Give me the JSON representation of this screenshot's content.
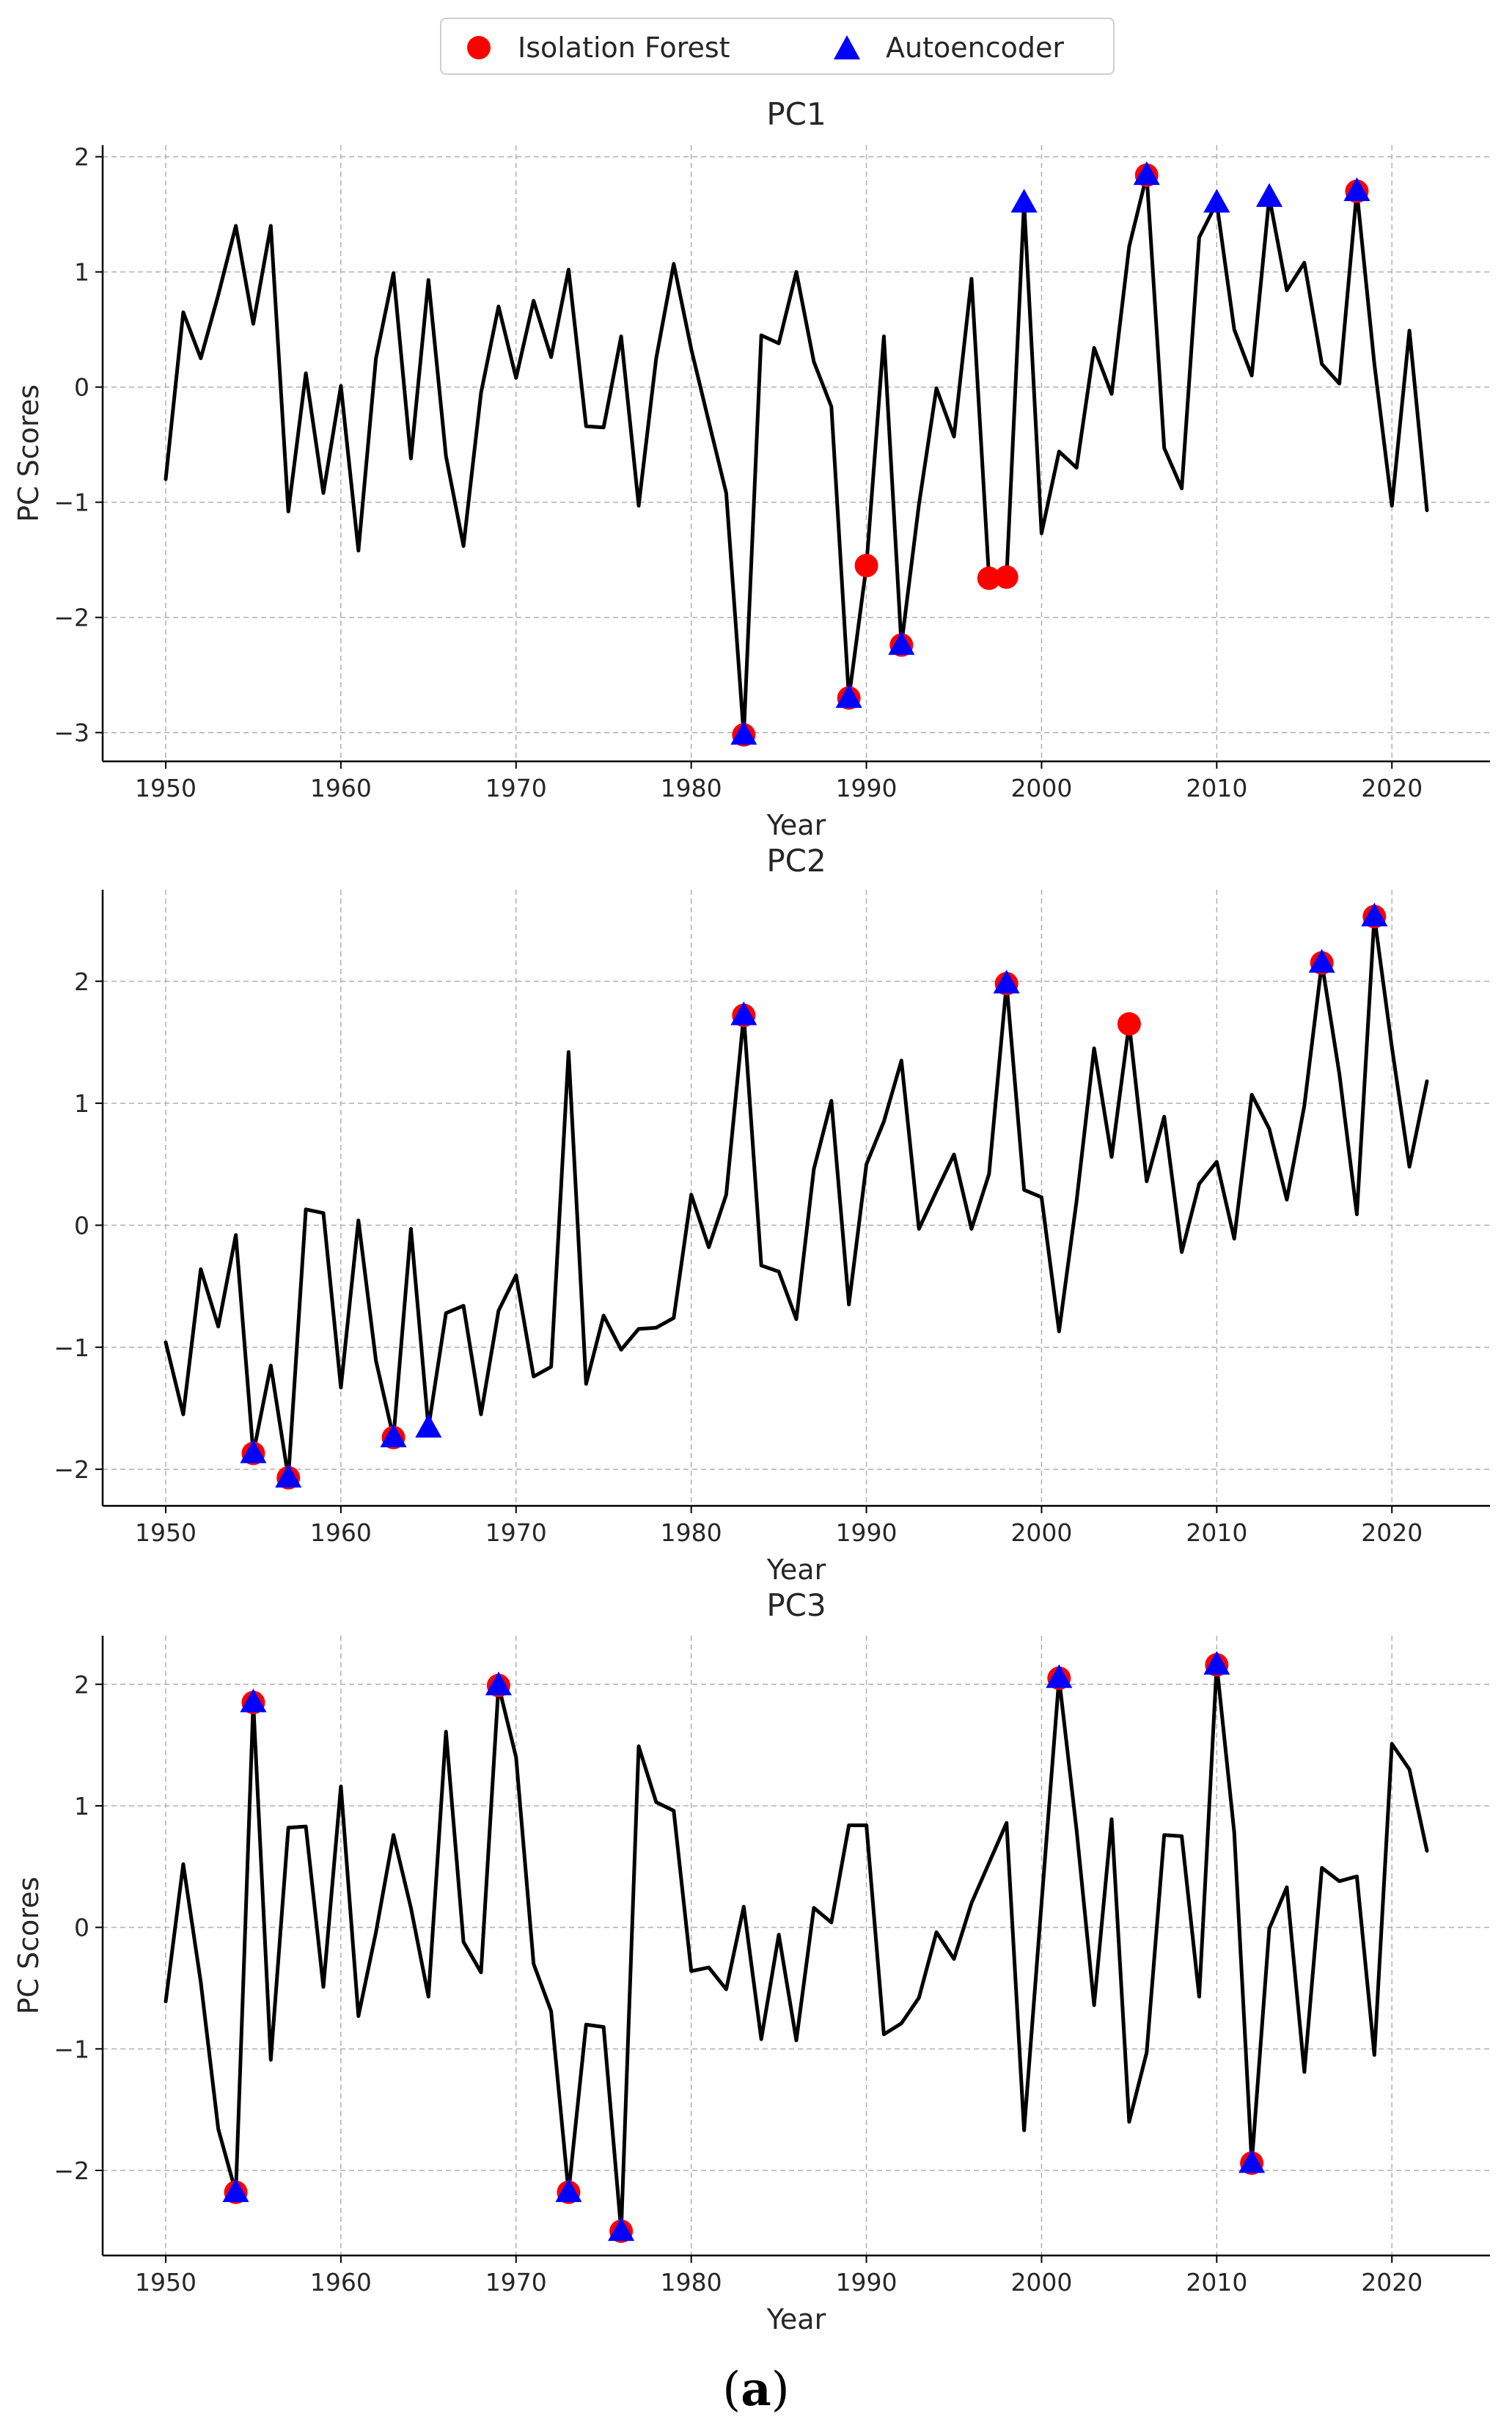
{
  "legend": {
    "items": [
      {
        "label": "Isolation Forest",
        "marker": "circle",
        "color": "#ff0000"
      },
      {
        "label": "Autoencoder",
        "marker": "triangle",
        "color": "#0000ff"
      }
    ]
  },
  "sublabel": {
    "open": "(",
    "letter": "a",
    "close": ")"
  },
  "colors": {
    "line": "#000000",
    "isolation_forest": "#ff0000",
    "autoencoder": "#0000ff",
    "grid": "#b0b0b0"
  },
  "chart_data": [
    {
      "type": "line",
      "title": "PC1",
      "xlabel": "Year",
      "ylabel": "PC Scores",
      "xlim": [
        1946.4,
        2025.6
      ],
      "ylim": [
        -3.25,
        2.1
      ],
      "xticks": [
        1950,
        1960,
        1970,
        1980,
        1990,
        2000,
        2010,
        2020
      ],
      "yticks": [
        -3,
        -2,
        -1,
        0,
        1,
        2
      ],
      "grid": true,
      "legend_position": "top-center",
      "x": [
        1950,
        1951,
        1952,
        1953,
        1954,
        1955,
        1956,
        1957,
        1958,
        1959,
        1960,
        1961,
        1962,
        1963,
        1964,
        1965,
        1966,
        1967,
        1968,
        1969,
        1970,
        1971,
        1972,
        1973,
        1974,
        1975,
        1976,
        1977,
        1978,
        1979,
        1980,
        1981,
        1982,
        1983,
        1984,
        1985,
        1986,
        1987,
        1988,
        1989,
        1990,
        1991,
        1992,
        1993,
        1994,
        1995,
        1996,
        1997,
        1998,
        1999,
        2000,
        2001,
        2002,
        2003,
        2004,
        2005,
        2006,
        2007,
        2008,
        2009,
        2010,
        2011,
        2012,
        2013,
        2014,
        2015,
        2016,
        2017,
        2018,
        2019,
        2020,
        2021,
        2022
      ],
      "y": [
        -0.8,
        0.65,
        0.25,
        0.8,
        1.4,
        0.55,
        1.4,
        -1.08,
        0.12,
        -0.92,
        0.01,
        -1.42,
        0.25,
        0.99,
        -0.62,
        0.93,
        -0.6,
        -1.38,
        -0.05,
        0.7,
        0.08,
        0.75,
        0.26,
        1.02,
        -0.34,
        -0.35,
        0.44,
        -1.03,
        0.25,
        1.07,
        0.33,
        -0.3,
        -0.92,
        -3.02,
        0.45,
        0.38,
        1.0,
        0.22,
        -0.17,
        -2.7,
        -1.55,
        0.44,
        -2.24,
        -1.02,
        -0.01,
        -0.43,
        0.94,
        -1.66,
        -1.65,
        1.6,
        -1.27,
        -0.56,
        -0.7,
        0.34,
        -0.06,
        1.22,
        1.84,
        -0.53,
        -0.88,
        1.3,
        1.6,
        0.5,
        0.1,
        1.65,
        0.84,
        1.08,
        0.2,
        0.03,
        1.7,
        0.2,
        -1.03,
        0.49,
        -1.07
      ],
      "series": [
        {
          "name": "Isolation Forest",
          "marker": "circle",
          "x": [
            1983,
            1989,
            1990,
            1992,
            1997,
            1998,
            2006,
            2018
          ],
          "y": [
            -3.02,
            -2.7,
            -1.55,
            -2.24,
            -1.66,
            -1.65,
            1.84,
            1.7
          ]
        },
        {
          "name": "Autoencoder",
          "marker": "triangle",
          "x": [
            1983,
            1989,
            1992,
            1999,
            2006,
            2010,
            2013,
            2018
          ],
          "y": [
            -3.02,
            -2.7,
            -2.24,
            1.6,
            1.84,
            1.6,
            1.65,
            1.7
          ]
        }
      ]
    },
    {
      "type": "line",
      "title": "PC2",
      "xlabel": "Year",
      "ylabel": "",
      "xlim": [
        1946.4,
        2025.6
      ],
      "ylim": [
        -2.3,
        2.75
      ],
      "xticks": [
        1950,
        1960,
        1970,
        1980,
        1990,
        2000,
        2010,
        2020
      ],
      "yticks": [
        -2,
        -1,
        0,
        1,
        2
      ],
      "grid": true,
      "x": [
        1950,
        1951,
        1952,
        1953,
        1954,
        1955,
        1956,
        1957,
        1958,
        1959,
        1960,
        1961,
        1962,
        1963,
        1964,
        1965,
        1966,
        1967,
        1968,
        1969,
        1970,
        1971,
        1972,
        1973,
        1974,
        1975,
        1976,
        1977,
        1978,
        1979,
        1980,
        1981,
        1982,
        1983,
        1984,
        1985,
        1986,
        1987,
        1988,
        1989,
        1990,
        1991,
        1992,
        1993,
        1994,
        1995,
        1996,
        1997,
        1998,
        1999,
        2000,
        2001,
        2002,
        2003,
        2004,
        2005,
        2006,
        2007,
        2008,
        2009,
        2010,
        2011,
        2012,
        2013,
        2014,
        2015,
        2016,
        2017,
        2018,
        2019,
        2020,
        2021,
        2022
      ],
      "y": [
        -0.96,
        -1.55,
        -0.36,
        -0.83,
        -0.08,
        -1.87,
        -1.15,
        -2.07,
        0.13,
        0.1,
        -1.33,
        0.04,
        -1.11,
        -1.74,
        -0.03,
        -1.66,
        -0.72,
        -0.66,
        -1.55,
        -0.7,
        -0.41,
        -1.24,
        -1.16,
        1.42,
        -1.3,
        -0.74,
        -1.02,
        -0.85,
        -0.84,
        -0.76,
        0.25,
        -0.18,
        0.25,
        1.72,
        -0.33,
        -0.38,
        -0.77,
        0.46,
        1.02,
        -0.65,
        0.5,
        0.85,
        1.35,
        -0.03,
        0.28,
        0.58,
        -0.03,
        0.42,
        1.98,
        0.29,
        0.23,
        -0.87,
        0.2,
        1.45,
        0.56,
        1.65,
        0.36,
        0.89,
        -0.22,
        0.34,
        0.52,
        -0.11,
        1.07,
        0.79,
        0.21,
        0.98,
        2.15,
        1.24,
        0.09,
        2.53,
        1.46,
        0.48,
        1.18
      ],
      "series": [
        {
          "name": "Isolation Forest",
          "marker": "circle",
          "x": [
            1955,
            1957,
            1963,
            1983,
            1998,
            2005,
            2016,
            2019
          ],
          "y": [
            -1.87,
            -2.07,
            -1.74,
            1.72,
            1.98,
            1.65,
            2.15,
            2.53
          ]
        },
        {
          "name": "Autoencoder",
          "marker": "triangle",
          "x": [
            1955,
            1957,
            1963,
            1965,
            1983,
            1998,
            2016,
            2019
          ],
          "y": [
            -1.87,
            -2.07,
            -1.74,
            -1.66,
            1.72,
            1.98,
            2.15,
            2.53
          ]
        }
      ]
    },
    {
      "type": "line",
      "title": "PC3",
      "xlabel": "Year",
      "ylabel": "PC Scores",
      "xlim": [
        1946.4,
        2025.6
      ],
      "ylim": [
        -2.7,
        2.4
      ],
      "xticks": [
        1950,
        1960,
        1970,
        1980,
        1990,
        2000,
        2010,
        2020
      ],
      "yticks": [
        -2,
        -1,
        0,
        1,
        2
      ],
      "grid": true,
      "x": [
        1950,
        1951,
        1952,
        1953,
        1954,
        1955,
        1956,
        1957,
        1958,
        1959,
        1960,
        1961,
        1962,
        1963,
        1964,
        1965,
        1966,
        1967,
        1968,
        1969,
        1970,
        1971,
        1972,
        1973,
        1974,
        1975,
        1976,
        1977,
        1978,
        1979,
        1980,
        1981,
        1982,
        1983,
        1984,
        1985,
        1986,
        1987,
        1988,
        1989,
        1990,
        1991,
        1992,
        1993,
        1994,
        1995,
        1996,
        1997,
        1998,
        1999,
        2000,
        2001,
        2002,
        2003,
        2004,
        2005,
        2006,
        2007,
        2008,
        2009,
        2010,
        2011,
        2012,
        2013,
        2014,
        2015,
        2016,
        2017,
        2018,
        2019,
        2020,
        2021,
        2022
      ],
      "y": [
        -0.61,
        0.52,
        -0.45,
        -1.66,
        -2.18,
        1.85,
        -1.09,
        0.82,
        0.83,
        -0.49,
        1.16,
        -0.73,
        -0.04,
        0.76,
        0.16,
        -0.57,
        1.61,
        -0.12,
        -0.37,
        1.99,
        1.4,
        -0.3,
        -0.69,
        -2.18,
        -0.8,
        -0.82,
        -2.5,
        1.49,
        1.03,
        0.96,
        -0.36,
        -0.33,
        -0.51,
        0.17,
        -0.92,
        -0.06,
        -0.93,
        0.16,
        0.04,
        0.84,
        0.84,
        -0.88,
        -0.79,
        -0.58,
        -0.04,
        -0.26,
        0.2,
        0.53,
        0.86,
        -1.67,
        0.2,
        2.05,
        0.8,
        -0.64,
        0.89,
        -1.6,
        -1.03,
        0.76,
        0.75,
        -0.57,
        2.16,
        0.78,
        -1.94,
        -0.01,
        0.33,
        -1.19,
        0.49,
        0.38,
        0.42,
        -1.05,
        1.51,
        1.3,
        0.63
      ],
      "series": [
        {
          "name": "Isolation Forest",
          "marker": "circle",
          "x": [
            1954,
            1955,
            1969,
            1973,
            1976,
            2001,
            2010,
            2012
          ],
          "y": [
            -2.18,
            1.85,
            1.99,
            -2.18,
            -2.5,
            2.05,
            2.16,
            -1.94
          ]
        },
        {
          "name": "Autoencoder",
          "marker": "triangle",
          "x": [
            1954,
            1955,
            1969,
            1973,
            1976,
            2001,
            2010,
            2012
          ],
          "y": [
            -2.18,
            1.85,
            1.99,
            -2.18,
            -2.5,
            2.05,
            2.16,
            -1.94
          ]
        }
      ]
    }
  ]
}
